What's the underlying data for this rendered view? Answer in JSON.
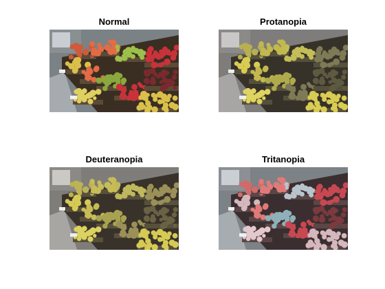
{
  "panels": [
    {
      "title": "Normal",
      "colors": {
        "wall": "#8a8f92",
        "wall_light": "#c9ced2",
        "floor": "#7b8285",
        "crate": "#5b4a36",
        "crate_dark": "#3a2e22",
        "fruit_a": "#d05a3a",
        "fruit_b": "#9cc04a",
        "fruit_c": "#e36b45",
        "fruit_d": "#c8323a",
        "fruit_e": "#d9c04a",
        "fruit_f": "#e0d060",
        "fruit_g": "#8aa83e",
        "fruit_h": "#7a2a2e",
        "label": "#f0f0f0"
      }
    },
    {
      "title": "Protanopia",
      "colors": {
        "wall": "#8c8a88",
        "wall_light": "#cac8c6",
        "floor": "#7e7d7c",
        "crate": "#55503a",
        "crate_dark": "#36322a",
        "fruit_a": "#b8b050",
        "fruit_b": "#c4be58",
        "fruit_c": "#c2b84e",
        "fruit_d": "#7e7a56",
        "fruit_e": "#d8cc52",
        "fruit_f": "#e0d460",
        "fruit_g": "#b0aa4c",
        "fruit_h": "#5e5a40",
        "label": "#eeeeea"
      }
    },
    {
      "title": "Deuteranopia",
      "colors": {
        "wall": "#8b8a86",
        "wall_light": "#cbc9c4",
        "floor": "#7f7d79",
        "crate": "#57503a",
        "crate_dark": "#38322a",
        "fruit_a": "#bcb256",
        "fruit_b": "#bfb85c",
        "fruit_c": "#c8bc56",
        "fruit_d": "#9a9058",
        "fruit_e": "#d6ca54",
        "fruit_f": "#dcd262",
        "fruit_g": "#a8a250",
        "fruit_h": "#6a6244",
        "label": "#eeeeea"
      }
    },
    {
      "title": "Tritanopia",
      "colors": {
        "wall": "#8c8f93",
        "wall_light": "#cacfd3",
        "floor": "#7c8286",
        "crate": "#5a4646",
        "crate_dark": "#3a2e30",
        "fruit_a": "#d26a6a",
        "fruit_b": "#b8c4cc",
        "fruit_c": "#e07a78",
        "fruit_d": "#c84852",
        "fruit_e": "#d4b8be",
        "fruit_f": "#e4c8ce",
        "fruit_g": "#8fb0b8",
        "fruit_h": "#7a3a3e",
        "label": "#f0f0f2"
      }
    }
  ]
}
